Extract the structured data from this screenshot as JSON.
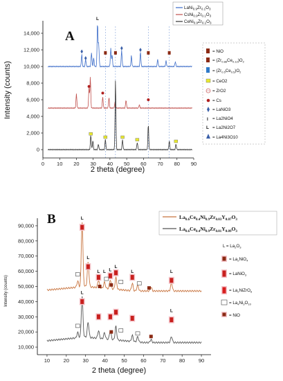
{
  "chart_data": [
    {
      "panel": "A",
      "type": "line",
      "xlabel": "2 theta (degree)",
      "ylabel": "Intensity (counts)",
      "xlim": [
        0,
        90
      ],
      "ylim": [
        -1000,
        15500
      ],
      "x_ticks": [
        "0",
        "10",
        "20",
        "30",
        "40",
        "50",
        "60",
        "70",
        "80",
        "90"
      ],
      "y_ticks": [
        "0",
        "2,000",
        "4,000",
        "6,000",
        "8,000",
        "10,000",
        "12,000",
        "14,000"
      ],
      "series": [
        {
          "name": "LaNi0.9Zr0.1O3",
          "label_main": "LaNi",
          "sub1": "0.9",
          "mid": "Zr",
          "sub2": "0.1",
          "tail": "O",
          "sub3": "3",
          "color": "#3a6bc8",
          "baseline": 10000,
          "peaks": [
            [
              23.2,
              1500
            ],
            [
              25.5,
              900
            ],
            [
              29.0,
              1700
            ],
            [
              30.3,
              1000
            ],
            [
              32.6,
              5400
            ],
            [
              33.3,
              2800
            ],
            [
              40.5,
              2200
            ],
            [
              41.3,
              1400
            ],
            [
              47.0,
              2000
            ],
            [
              52.8,
              1300
            ],
            [
              58.2,
              1800
            ],
            [
              68.5,
              900
            ],
            [
              73.5,
              700
            ],
            [
              79.0,
              600
            ]
          ]
        },
        {
          "name": "CsNi0.9Zr0.1O3",
          "label_main": "CsNi",
          "sub1": "0.9",
          "mid": "Zr",
          "sub2": "0.1",
          "tail": "O",
          "sub3": "3",
          "color": "#c0504d",
          "baseline": 5000,
          "peaks": [
            [
              20.0,
              1700
            ],
            [
              27.5,
              2400
            ],
            [
              28.3,
              3800
            ],
            [
              35.7,
              1400
            ],
            [
              39.4,
              1300
            ],
            [
              43.0,
              700
            ],
            [
              49.6,
              1000
            ],
            [
              57.5,
              400
            ]
          ]
        },
        {
          "name": "CeNi0.9Zr0.1O3",
          "label_main": "CeNi",
          "sub1": "0.9",
          "mid": "Zr",
          "sub2": "0.1",
          "tail": "O",
          "sub3": "3",
          "color": "#333333",
          "baseline": 0,
          "peaks": [
            [
              28.6,
              1800
            ],
            [
              29.8,
              1100
            ],
            [
              33.1,
              700
            ],
            [
              37.3,
              1300
            ],
            [
              43.3,
              8500
            ],
            [
              47.5,
              1200
            ],
            [
              56.3,
              900
            ],
            [
              62.9,
              3100
            ],
            [
              75.4,
              1100
            ],
            [
              79.4,
              700
            ]
          ]
        }
      ],
      "phase_legend": [
        "= NiO",
        "= (Zr0.88Ce0.12)O2",
        "= (Zr0.5Ce0.5)O2",
        "= CeO2",
        "= ZrO2",
        "= Cs",
        "= LaNiO3",
        "= La2NiO4",
        "= La2Ni2O7",
        "= La4Ni3O10"
      ],
      "phase_legend_sym": [
        "= (Zr",
        "0.88",
        "Ce",
        "0.12",
        ")O",
        "2",
        "= (Zr",
        "0.5",
        "Ce",
        "0.5",
        ")O",
        "2"
      ],
      "top_mark": "L"
    },
    {
      "panel": "B",
      "type": "line",
      "xlabel": "2 theta (degree)",
      "ylabel": "Intensity (counts)",
      "xlim": [
        5,
        95
      ],
      "ylim": [
        5000,
        95000
      ],
      "x_ticks": [
        "10",
        "20",
        "30",
        "40",
        "50",
        "60",
        "70",
        "80",
        "90"
      ],
      "y_ticks": [
        "10,000",
        "20,000",
        "30,000",
        "40,000",
        "50,000",
        "60,000",
        "70,000",
        "80,000",
        "90,000"
      ],
      "series": [
        {
          "name": "La0.6Ce0.4Ni0.9Zr0.03Y0.07O3",
          "color": "#c8743f",
          "baseline": 47000,
          "peaks": [
            [
              25.9,
              4000
            ],
            [
              28.2,
              43000
            ],
            [
              31.3,
              16000
            ],
            [
              36.7,
              5000
            ],
            [
              39.8,
              4000
            ],
            [
              42.8,
              6000
            ],
            [
              45.7,
              8000
            ],
            [
              54.2,
              5000
            ],
            [
              57.0,
              4000
            ],
            [
              63.9,
              2500
            ],
            [
              74.5,
              5500
            ]
          ]
        },
        {
          "name": "La0.6Ce0.4Ni0.9Zr0.01Y0.09O3",
          "color": "#555555",
          "baseline": 13000,
          "peaks": [
            [
              25.9,
              3500
            ],
            [
              28.2,
              27000
            ],
            [
              31.3,
              10000
            ],
            [
              36.7,
              5000
            ],
            [
              39.8,
              4000
            ],
            [
              42.8,
              6000
            ],
            [
              45.7,
              9000
            ],
            [
              54.2,
              4000
            ],
            [
              57.0,
              3500
            ],
            [
              63.9,
              2000
            ],
            [
              74.5,
              4000
            ]
          ]
        }
      ],
      "legend_series": [
        {
          "parts": [
            "La",
            "0.6",
            "Ce",
            "0.4",
            "Ni",
            "0.9",
            "Zr",
            "0.03",
            "Y",
            "0.07",
            "O",
            "3"
          ]
        },
        {
          "parts": [
            "La",
            "0.6",
            "Ce",
            "0.4",
            "Ni",
            "0.9",
            "Zr",
            "0.01",
            "Y",
            "0.09",
            "O",
            "3"
          ]
        }
      ],
      "phase_legend": [
        "L = La2O3",
        "= La2NiO4",
        "= LaNiO3",
        "= La2NiZrO6",
        "= La4Ni3O10",
        "= NiO"
      ],
      "phase_legend_parts": [
        [
          "L = La",
          "2",
          "O",
          "3"
        ],
        [
          "= La",
          "2",
          "NiO",
          "4"
        ],
        [
          "= LaNiO",
          "3",
          "",
          ""
        ],
        [
          "= La",
          "2",
          "NiZrO",
          "6"
        ],
        [
          "= La",
          "4",
          "Ni",
          "3",
          "O",
          "10"
        ],
        [
          "= NiO",
          "",
          ""
        ]
      ],
      "top_mark": "L"
    }
  ]
}
